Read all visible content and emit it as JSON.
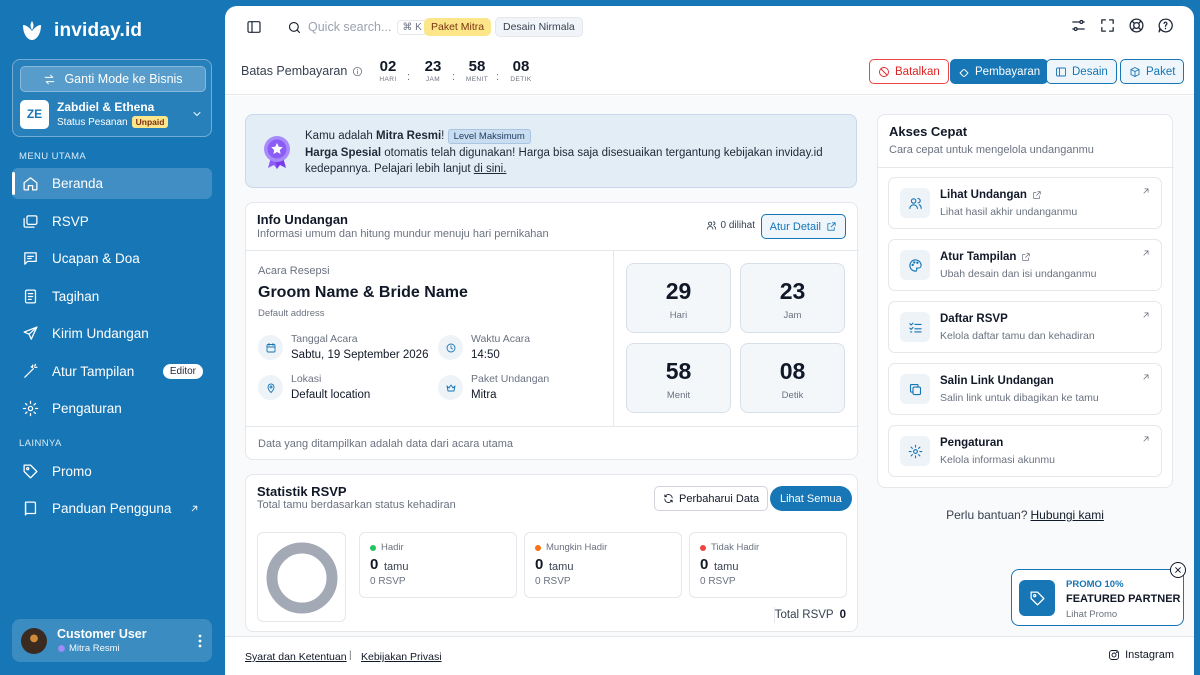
{
  "app": {
    "name": "inviday.id"
  },
  "sidebar": {
    "switch_mode_label": "Ganti Mode ke Bisnis",
    "account": {
      "initials": "ZE",
      "name": "Zabdiel & Ethena",
      "status_label": "Status Pesanan",
      "status_badge": "Unpaid"
    },
    "section_main": "MENU UTAMA",
    "section_other": "LAINNYA",
    "items": [
      {
        "label": "Beranda",
        "icon": "home-icon"
      },
      {
        "label": "RSVP",
        "icon": "cards-icon"
      },
      {
        "label": "Ucapan & Doa",
        "icon": "message-icon"
      },
      {
        "label": "Tagihan",
        "icon": "receipt-icon"
      },
      {
        "label": "Kirim Undangan",
        "icon": "send-icon"
      },
      {
        "label": "Atur Tampilan",
        "icon": "magic-wand-icon",
        "badge": "Editor"
      },
      {
        "label": "Pengaturan",
        "icon": "gear-icon"
      }
    ],
    "other_items": [
      {
        "label": "Promo",
        "icon": "tag-icon"
      },
      {
        "label": "Panduan Pengguna",
        "icon": "book-icon"
      }
    ],
    "user": {
      "name": "Customer User",
      "role": "Mitra Resmi"
    }
  },
  "topbar": {
    "search_placeholder": "Quick search...",
    "shortcut": "⌘ K",
    "chips": [
      "Paket Mitra",
      "Desain Nirmala"
    ]
  },
  "payment": {
    "label": "Batas Pembayaran",
    "countdown": [
      {
        "value": "02",
        "unit": "HARI"
      },
      {
        "value": "23",
        "unit": "JAM"
      },
      {
        "value": "58",
        "unit": "MENIT"
      },
      {
        "value": "08",
        "unit": "DETIK"
      }
    ],
    "buttons": {
      "cancel": "Batalkan",
      "pay": "Pembayaran",
      "design": "Desain",
      "package": "Paket"
    }
  },
  "banner": {
    "prefix": "Kamu adalah",
    "role": "Mitra Resmi",
    "exclaim": "!",
    "level": "Level Maksimum",
    "special": "Harga Spesial",
    "body": "otomatis telah digunakan! Harga bisa saja disesuaikan tergantung kebijakan inviday.id kedepannya. Pelajari lebih lanjut",
    "link": "di sini."
  },
  "info": {
    "title": "Info Undangan",
    "subtitle": "Informasi umum dan hitung mundur menuju hari pernikahan",
    "views": "0 dilihat",
    "detail_button": "Atur Detail",
    "event_label": "Acara Resepsi",
    "couple": "Groom Name & Bride Name",
    "address": "Default address",
    "date_label": "Tanggal Acara",
    "date_value": "Sabtu, 19 September 2026",
    "time_label": "Waktu Acara",
    "time_value": "14:50",
    "location_label": "Lokasi",
    "location_value": "Default location",
    "package_label": "Paket Undangan",
    "package_value": "Mitra",
    "countdown": [
      {
        "value": "29",
        "unit": "Hari"
      },
      {
        "value": "23",
        "unit": "Jam"
      },
      {
        "value": "58",
        "unit": "Menit"
      },
      {
        "value": "08",
        "unit": "Detik"
      }
    ],
    "note": "Data yang ditampilkan adalah data dari acara utama"
  },
  "rsvp": {
    "title": "Statistik RSVP",
    "subtitle": "Total tamu berdasarkan status kehadiran",
    "refresh": "Perbaharui Data",
    "see_all": "Lihat Semua",
    "stats": [
      {
        "label": "Hadir",
        "value": "0",
        "unit": "tamu",
        "sub": "0 RSVP",
        "color": "#22c55e"
      },
      {
        "label": "Mungkin Hadir",
        "value": "0",
        "unit": "tamu",
        "sub": "0 RSVP",
        "color": "#f97316"
      },
      {
        "label": "Tidak Hadir",
        "value": "0",
        "unit": "tamu",
        "sub": "0 RSVP",
        "color": "#ef4444"
      }
    ],
    "total_label": "Total RSVP",
    "total_value": "0"
  },
  "quick": {
    "title": "Akses Cepat",
    "subtitle": "Cara cepat untuk mengelola undanganmu",
    "items": [
      {
        "title": "Lihat Undangan",
        "desc": "Lihat hasil akhir undanganmu",
        "icon": "users-icon"
      },
      {
        "title": "Atur Tampilan",
        "desc": "Ubah desain dan isi undanganmu",
        "icon": "palette-icon"
      },
      {
        "title": "Daftar RSVP",
        "desc": "Kelola daftar tamu dan kehadiran",
        "icon": "checklist-icon"
      },
      {
        "title": "Salin Link Undangan",
        "desc": "Salin link untuk dibagikan ke tamu",
        "icon": "copy-icon"
      },
      {
        "title": "Pengaturan",
        "desc": "Kelola informasi akunmu",
        "icon": "gear-icon"
      }
    ]
  },
  "help": {
    "text": "Perlu bantuan?",
    "link": "Hubungi kami"
  },
  "promo": {
    "tag": "PROMO 10%",
    "name": "FEATURED PARTNER",
    "link": "Lihat Promo"
  },
  "footer": {
    "terms": "Syarat dan Ketentuan",
    "separator": "|",
    "privacy": "Kebijakan Privasi",
    "social": "Instagram"
  },
  "colors": {
    "primary": "#1676b6",
    "danger": "#ef4444",
    "gold": "#fde68a"
  }
}
